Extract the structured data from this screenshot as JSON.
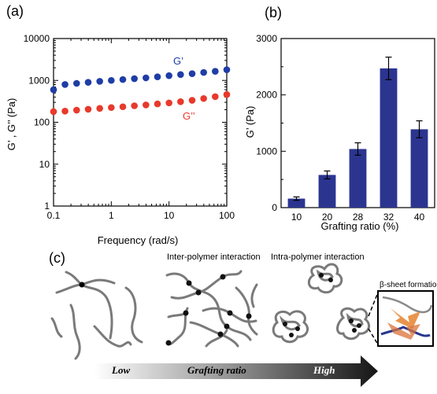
{
  "panels": {
    "a": "(a)",
    "b": "(b)",
    "c": "(c)"
  },
  "colors": {
    "blue": "#1f3da6",
    "red": "#e8392b",
    "bar": "#2b3590",
    "strand": "#7a7a7a",
    "sheet": "#e8893a"
  },
  "chart_data": [
    {
      "type": "scatter",
      "xlabel": "Frequency (rad/s)",
      "ylabel": "G’ , G’’ (Pa)",
      "xscale": "log",
      "yscale": "log",
      "xlim": [
        0.1,
        100
      ],
      "ylim": [
        1,
        10000
      ],
      "xticks": [
        "0.1",
        "1",
        "10",
        "100"
      ],
      "yticks": [
        "1",
        "10",
        "100",
        "1000",
        "10000"
      ],
      "series": [
        {
          "name": "G’",
          "color": "#1f3da6",
          "x": [
            0.1,
            0.158,
            0.251,
            0.398,
            0.631,
            1.0,
            1.585,
            2.512,
            3.981,
            6.31,
            10.0,
            15.85,
            25.12,
            39.81,
            63.1,
            100
          ],
          "y": [
            600,
            800,
            850,
            900,
            950,
            1000,
            1050,
            1100,
            1150,
            1220,
            1300,
            1380,
            1450,
            1550,
            1650,
            1800
          ]
        },
        {
          "name": "G’’",
          "color": "#e8392b",
          "x": [
            0.1,
            0.158,
            0.251,
            0.398,
            0.631,
            1.0,
            1.585,
            2.512,
            3.981,
            6.31,
            10.0,
            15.85,
            25.12,
            39.81,
            63.1,
            100
          ],
          "y": [
            180,
            185,
            195,
            205,
            215,
            225,
            235,
            248,
            260,
            275,
            290,
            310,
            335,
            370,
            410,
            460
          ]
        }
      ]
    },
    {
      "type": "bar",
      "xlabel": "Grafting ratio (%)",
      "ylabel": "G’ (Pa)",
      "categories": [
        "10",
        "20",
        "28",
        "32",
        "40"
      ],
      "values": [
        160,
        580,
        1040,
        2470,
        1390
      ],
      "errors": [
        30,
        70,
        110,
        200,
        150
      ],
      "ylim": [
        0,
        3000
      ],
      "yticks": [
        "0",
        "1000",
        "2000",
        "3000"
      ]
    }
  ],
  "diagram": {
    "inter_label": "Inter-polymer interaction",
    "intra_label": "Intra-polymer interaction",
    "sheet_label": "β-sheet formation",
    "arrow": {
      "low": "Low",
      "middle": "Grafting ratio",
      "high": "High"
    }
  }
}
